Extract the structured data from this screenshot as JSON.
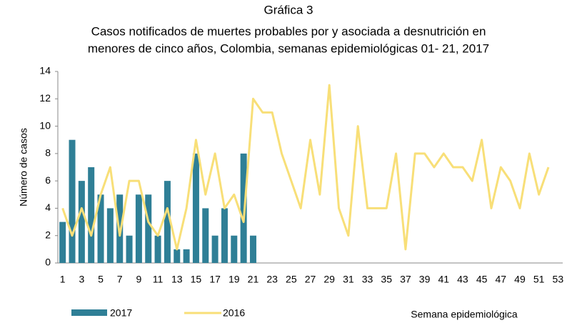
{
  "chart_data": {
    "type": "bar_line",
    "title": "Gráfica 3",
    "subtitle": [
      "Casos notificados de muertes probables por y asociada a desnutrición en",
      "menores de cinco años, Colombia, semanas epidemiológicas 01- 21, 2017"
    ],
    "x_label": "Semana epidemiológica",
    "y_label": "Número de casos",
    "categories": [
      1,
      null,
      3,
      null,
      5,
      null,
      7,
      null,
      9,
      null,
      11,
      null,
      13,
      null,
      15,
      null,
      17,
      null,
      19,
      null,
      21,
      null,
      23,
      null,
      25,
      null,
      27,
      null,
      29,
      null,
      31,
      null,
      33,
      null,
      35,
      null,
      37,
      null,
      39,
      null,
      41,
      null,
      43,
      null,
      45,
      null,
      47,
      null,
      49,
      null,
      51,
      null,
      53
    ],
    "series": [
      {
        "name": "2017",
        "type": "bar",
        "color": "#2f7f96",
        "values": [
          3,
          9,
          6,
          7,
          5,
          4,
          5,
          2,
          5,
          5,
          2,
          6,
          1,
          1,
          8,
          4,
          2,
          4,
          2,
          8,
          2,
          null,
          null,
          null,
          null,
          null,
          null,
          null,
          null,
          null,
          null,
          null,
          null,
          null,
          null,
          null,
          null,
          null,
          null,
          null,
          null,
          null,
          null,
          null,
          null,
          null,
          null,
          null,
          null,
          null,
          null,
          null,
          null
        ]
      },
      {
        "name": "2016",
        "type": "line",
        "color": "#f8df78",
        "values": [
          4,
          2,
          4,
          2,
          5,
          7,
          2,
          6,
          6,
          3,
          2,
          4,
          1,
          4,
          9,
          5,
          8,
          4,
          5,
          3,
          12,
          11,
          11,
          8,
          6,
          4,
          9,
          5,
          13,
          4,
          2,
          10,
          4,
          4,
          4,
          8,
          1,
          8,
          8,
          7,
          8,
          7,
          7,
          6,
          9,
          4,
          7,
          6,
          4,
          8,
          5,
          7,
          null
        ]
      }
    ],
    "ylim": [
      0,
      14
    ],
    "yticks": [
      0,
      2,
      4,
      6,
      8,
      10,
      12,
      14
    ],
    "grid": false
  }
}
